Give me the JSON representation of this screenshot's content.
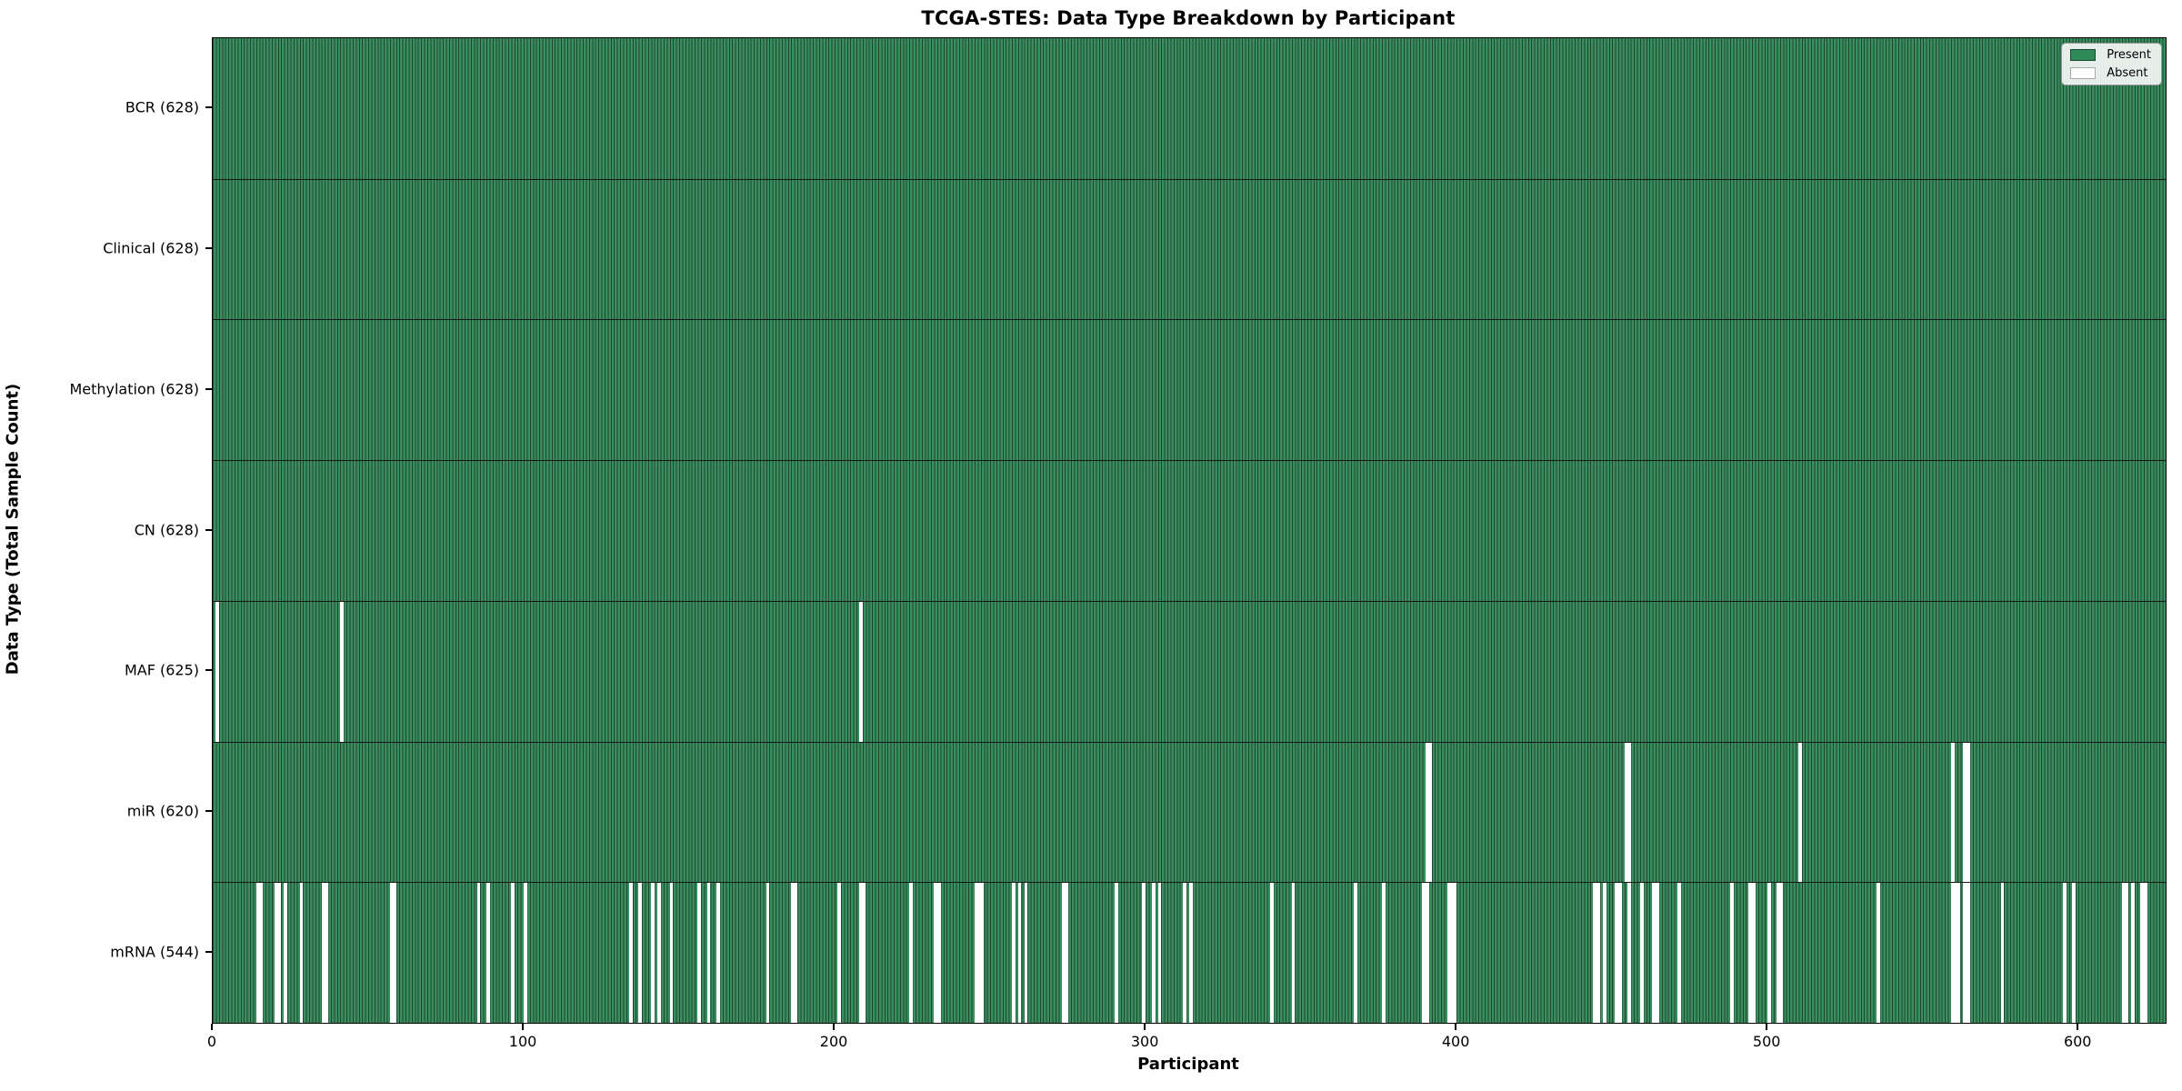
{
  "figure": {
    "title": "TCGA-STES: Data Type Breakdown by Participant",
    "xlabel": "Participant",
    "ylabel": "Data Type (Total Sample Count)"
  },
  "legend": {
    "items": [
      {
        "label": "Present",
        "color": "#2e8b57",
        "edge": "#1e4634"
      },
      {
        "label": "Absent",
        "color": "#ffffff",
        "edge": "#aaaaaa"
      }
    ]
  },
  "chart_data": {
    "type": "heatmap",
    "title": "TCGA-STES: Data Type Breakdown by Participant",
    "xlabel": "Participant",
    "ylabel": "Data Type (Total Sample Count)",
    "n_participants": 628,
    "x_ticks": [
      0,
      100,
      200,
      300,
      400,
      500,
      600
    ],
    "legend_position": "upper right",
    "rows": [
      {
        "label": "BCR (628)",
        "name": "BCR",
        "total": 628,
        "missing": []
      },
      {
        "label": "Clinical (628)",
        "name": "Clinical",
        "total": 628,
        "missing": []
      },
      {
        "label": "Methylation (628)",
        "name": "Methylation",
        "total": 628,
        "missing": []
      },
      {
        "label": "CN (628)",
        "name": "CN",
        "total": 628,
        "missing": []
      },
      {
        "label": "MAF (625)",
        "name": "MAF",
        "total": 625,
        "missing": [
          1,
          41,
          208
        ]
      },
      {
        "label": "miR (620)",
        "name": "miR",
        "total": 620,
        "missing": [
          390,
          391,
          454,
          455,
          510,
          559,
          563,
          564
        ]
      },
      {
        "label": "mRNA (544)",
        "name": "mRNA",
        "total": 544,
        "missing": [
          14,
          15,
          20,
          21,
          23,
          28,
          35,
          36,
          57,
          58,
          85,
          88,
          96,
          100,
          134,
          137,
          141,
          143,
          147,
          156,
          159,
          162,
          178,
          186,
          187,
          201,
          208,
          209,
          224,
          232,
          233,
          245,
          246,
          247,
          257,
          259,
          261,
          273,
          274,
          290,
          299,
          302,
          304,
          312,
          314,
          340,
          347,
          367,
          376,
          389,
          390,
          397,
          398,
          399,
          444,
          445,
          447,
          451,
          452,
          455,
          459,
          463,
          464,
          471,
          488,
          494,
          495,
          500,
          503,
          504,
          535,
          559,
          560,
          561,
          563,
          564,
          575,
          595,
          598,
          614,
          615,
          617,
          620,
          621
        ]
      }
    ],
    "colors": {
      "present_fill": "#3a8e5e",
      "bar_edge": "#1e4634",
      "absent": "#ffffff",
      "divider": "#161616",
      "legend_present": "#2e8b57"
    }
  }
}
